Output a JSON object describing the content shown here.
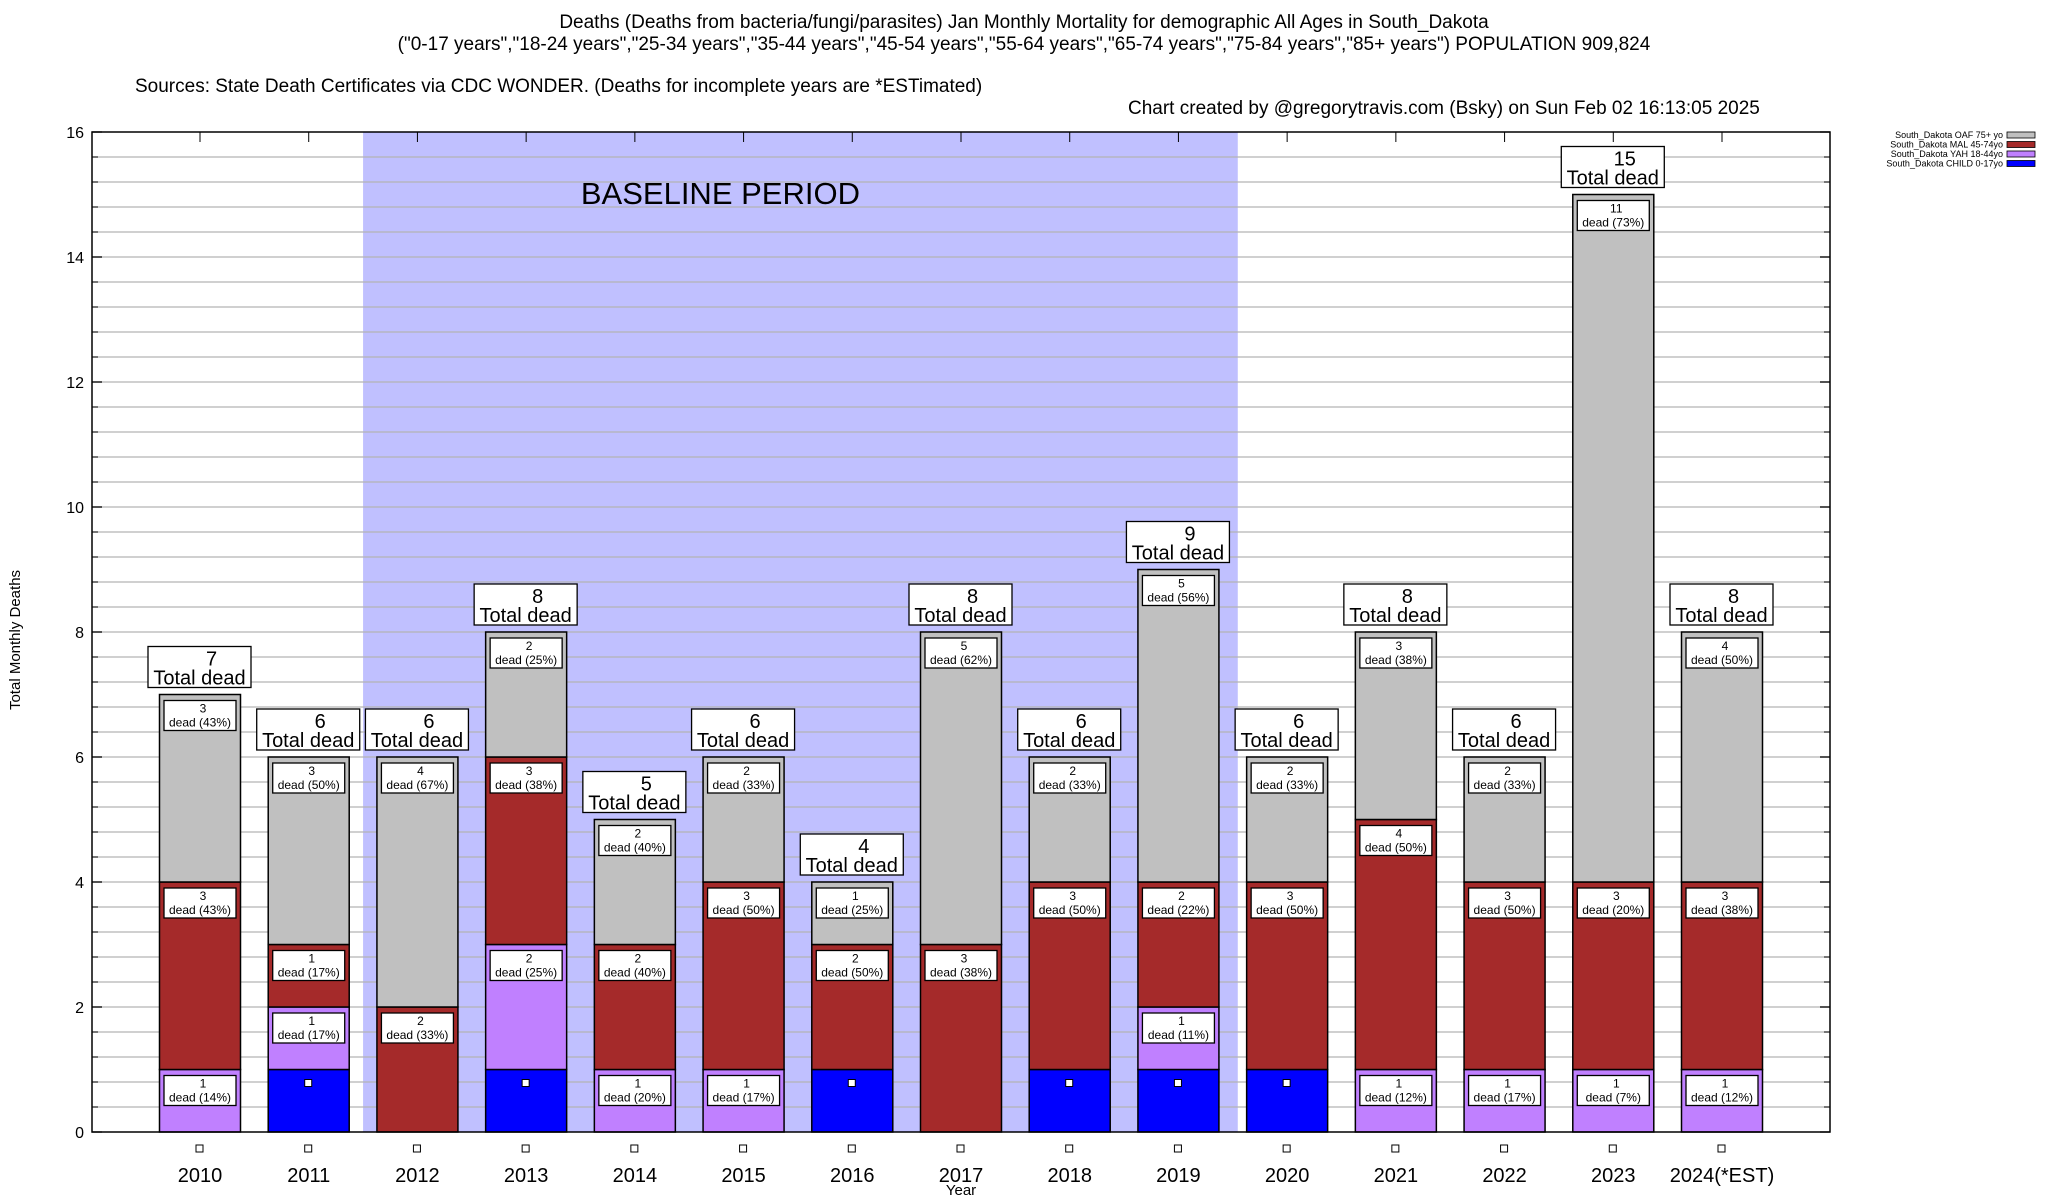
{
  "header": {
    "title_line1": "Deaths (Deaths from bacteria/fungi/parasites) Jan Monthly Mortality for demographic All Ages in South_Dakota",
    "title_line2": "(\"0-17 years\",\"18-24 years\",\"25-34 years\",\"35-44 years\",\"45-54 years\",\"55-64 years\",\"65-74 years\",\"75-84 years\",\"85+ years\") POPULATION 909,824",
    "sources": "Sources: State Death Certificates via CDC WONDER. (Deaths for incomplete years are *ESTimated)",
    "credit": "Chart created by @gregorytravis.com (Bsky) on Sun Feb 02 16:13:05 2025"
  },
  "chart_data": {
    "type": "bar",
    "stacked": true,
    "title": "Deaths (Deaths from bacteria/fungi/parasites) Jan Monthly Mortality for demographic All Ages in South_Dakota",
    "xlabel": "Year",
    "ylabel": "Total Monthly Deaths",
    "ylim": [
      0,
      16
    ],
    "yticks": [
      0,
      2,
      4,
      6,
      8,
      10,
      12,
      14,
      16
    ],
    "ytick_labels": [
      "0",
      "2",
      "4",
      "6",
      "8",
      "10",
      "12",
      "14",
      "16"
    ],
    "minor_grid_step": 0.4,
    "grid": true,
    "legend_position": "top-right",
    "categories": [
      "2010",
      "2011",
      "2012",
      "2013",
      "2014",
      "2015",
      "2016",
      "2017",
      "2018",
      "2019",
      "2020",
      "2021",
      "2022",
      "2023",
      "2024(*EST)"
    ],
    "series": [
      {
        "name": "South_Dakota CHILD 0-17yo",
        "color": "#0000ff",
        "values": [
          0,
          1,
          0,
          1,
          0,
          0,
          1,
          0,
          1,
          1,
          1,
          0,
          0,
          0,
          0
        ],
        "labels": [
          "",
          "",
          "",
          "",
          "",
          "",
          "",
          "",
          "",
          "",
          "",
          "",
          "",
          "",
          ""
        ]
      },
      {
        "name": "South_Dakota YAH 18-44yo",
        "color": "#c080ff",
        "values": [
          1,
          1,
          0,
          2,
          1,
          1,
          0,
          0,
          0,
          1,
          0,
          1,
          1,
          1,
          1
        ],
        "labels": [
          "dead (14%)",
          "dead (17%)",
          "",
          "dead (25%)",
          "dead (20%)",
          "dead (17%)",
          "",
          "",
          "",
          "dead (11%)",
          "",
          "dead (12%)",
          "dead (17%)",
          "dead (7%)",
          "dead (12%)"
        ]
      },
      {
        "name": "South_Dakota MAL 45-74yo",
        "color": "#a52a2a",
        "values": [
          3,
          1,
          2,
          3,
          2,
          3,
          2,
          3,
          3,
          2,
          3,
          4,
          3,
          3,
          3
        ],
        "labels": [
          "dead (43%)",
          "dead (17%)",
          "dead (33%)",
          "dead (38%)",
          "dead (40%)",
          "dead (50%)",
          "dead (50%)",
          "dead (38%)",
          "dead (50%)",
          "dead (22%)",
          "dead (50%)",
          "dead (50%)",
          "dead (50%)",
          "dead (20%)",
          "dead (38%)"
        ]
      },
      {
        "name": "South_Dakota OAF 75+ yo",
        "color": "#c0c0c0",
        "values": [
          3,
          3,
          4,
          2,
          2,
          2,
          1,
          5,
          2,
          5,
          2,
          3,
          2,
          11,
          4
        ],
        "labels": [
          "dead (43%)",
          "dead (50%)",
          "dead (67%)",
          "dead (25%)",
          "dead (40%)",
          "dead (33%)",
          "dead (25%)",
          "dead (62%)",
          "dead (33%)",
          "dead (56%)",
          "dead (33%)",
          "dead (38%)",
          "dead (33%)",
          "dead (73%)",
          "dead (50%)"
        ]
      }
    ],
    "totals": [
      7,
      6,
      6,
      8,
      5,
      6,
      4,
      8,
      6,
      9,
      6,
      8,
      6,
      15,
      8
    ],
    "total_label": "Total dead",
    "annotation": {
      "text": "BASELINE PERIOD",
      "from_category": "2012",
      "to_category": "2019",
      "color": "#c0c0ff"
    },
    "legend_order": [
      "South_Dakota OAF 75+ yo",
      "South_Dakota MAL 45-74yo",
      "South_Dakota YAH 18-44yo",
      "South_Dakota CHILD 0-17yo"
    ]
  }
}
